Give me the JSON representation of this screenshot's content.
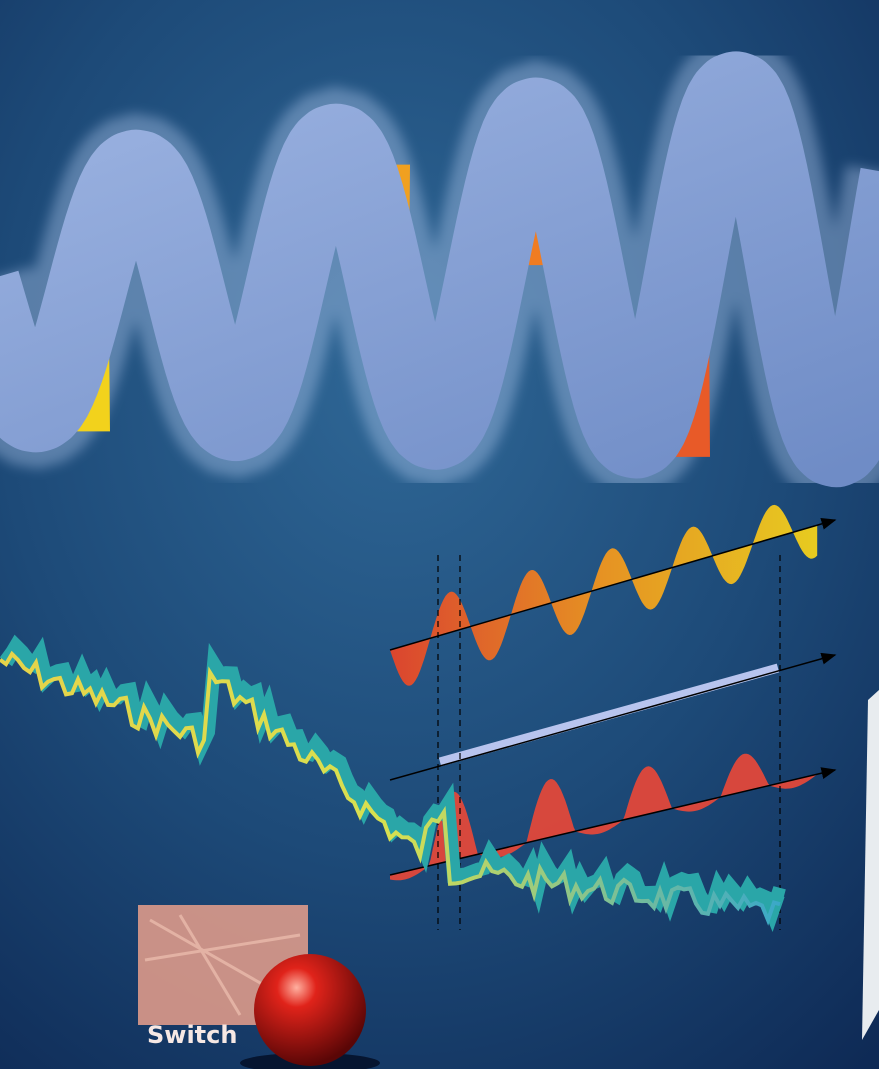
{
  "label": "Switch"
}
